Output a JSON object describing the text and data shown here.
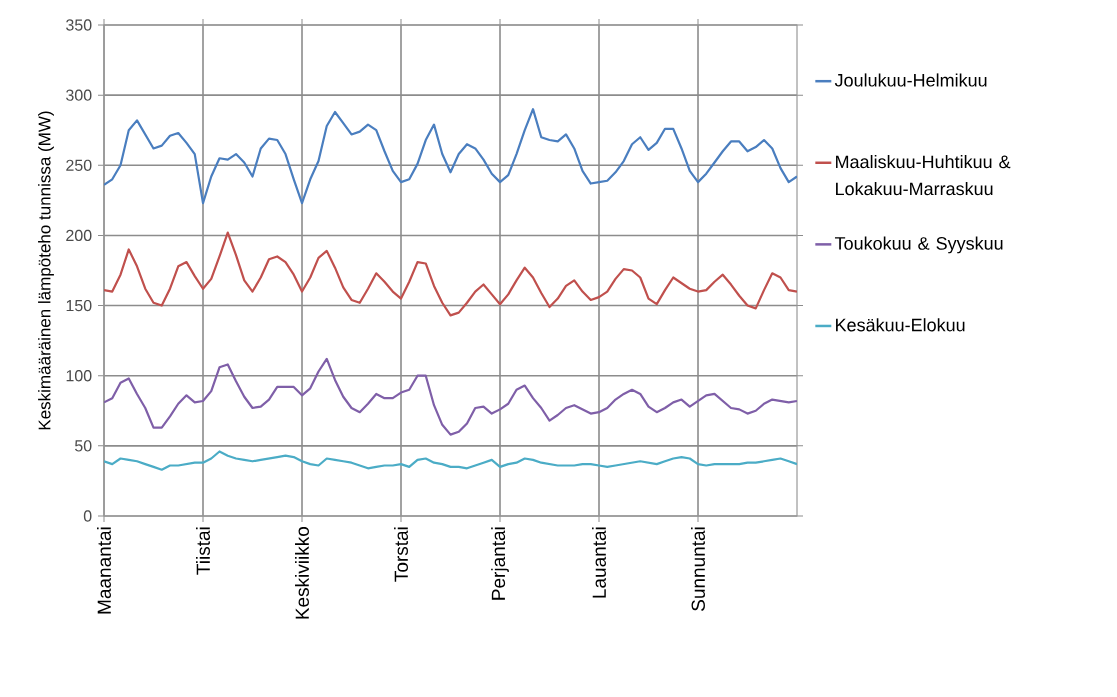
{
  "chart_data": {
    "type": "line",
    "ylabel": "Keskimääräinen lämpöteho tunnissa (MW)",
    "categories": [
      "Maanantai",
      null,
      null,
      null,
      null,
      null,
      null,
      null,
      null,
      null,
      null,
      null,
      "Tiistai",
      null,
      null,
      null,
      null,
      null,
      null,
      null,
      null,
      null,
      null,
      null,
      "Keskiviikko",
      null,
      null,
      null,
      null,
      null,
      null,
      null,
      null,
      null,
      null,
      null,
      "Torstai",
      null,
      null,
      null,
      null,
      null,
      null,
      null,
      null,
      null,
      null,
      null,
      "Perjantai",
      null,
      null,
      null,
      null,
      null,
      null,
      null,
      null,
      null,
      null,
      null,
      "Lauantai",
      null,
      null,
      null,
      null,
      null,
      null,
      null,
      null,
      null,
      null,
      null,
      "Sunnuntai",
      null,
      null,
      null,
      null,
      null,
      null,
      null,
      null,
      null,
      null,
      null,
      null
    ],
    "ylim": [
      0,
      350
    ],
    "yticks": [
      0,
      50,
      100,
      150,
      200,
      250,
      300,
      350
    ],
    "grid": true,
    "legend": "right",
    "series": [
      {
        "name": "Joulukuu-Helmikuu",
        "color": "#4a7ebf",
        "values": [
          236,
          240,
          250,
          275,
          282,
          272,
          262,
          264,
          271,
          273,
          266,
          258,
          223,
          242,
          255,
          254,
          258,
          252,
          242,
          262,
          269,
          268,
          258,
          240,
          223,
          240,
          253,
          278,
          288,
          280,
          272,
          274,
          279,
          275,
          260,
          246,
          238,
          240,
          251,
          268,
          279,
          258,
          245,
          258,
          265,
          262,
          254,
          244,
          238,
          243,
          258,
          275,
          290,
          270,
          268,
          267,
          272,
          262,
          246,
          237,
          238,
          239,
          245,
          253,
          265,
          270,
          261,
          266,
          276,
          276,
          262,
          246,
          238,
          244,
          252,
          260,
          267,
          267,
          260,
          263,
          268,
          262,
          248,
          238,
          242
        ]
      },
      {
        "name": "Maaliskuu-Huhtikuu & Lokakuu-Marraskuu",
        "color": "#c0504d",
        "values": [
          161,
          160,
          172,
          190,
          178,
          162,
          152,
          150,
          162,
          178,
          181,
          171,
          162,
          169,
          185,
          202,
          186,
          168,
          160,
          170,
          183,
          185,
          181,
          172,
          160,
          170,
          184,
          189,
          177,
          163,
          154,
          152,
          162,
          173,
          167,
          160,
          155,
          167,
          181,
          180,
          164,
          152,
          143,
          145,
          152,
          160,
          165,
          158,
          151,
          158,
          168,
          177,
          170,
          159,
          149,
          155,
          164,
          168,
          160,
          154,
          156,
          160,
          169,
          176,
          175,
          170,
          155,
          151,
          161,
          170,
          166,
          162,
          160,
          161,
          167,
          172,
          165,
          157,
          150,
          148,
          161,
          173,
          170,
          161,
          160
        ]
      },
      {
        "name": "Toukokuu & Syyskuu",
        "color": "#7f5fa8",
        "values": [
          81,
          84,
          95,
          98,
          87,
          77,
          63,
          63,
          71,
          80,
          86,
          81,
          82,
          89,
          106,
          108,
          96,
          85,
          77,
          78,
          83,
          92,
          92,
          92,
          86,
          91,
          103,
          112,
          97,
          85,
          77,
          74,
          80,
          87,
          84,
          84,
          88,
          90,
          100,
          100,
          79,
          65,
          58,
          60,
          66,
          77,
          78,
          73,
          76,
          80,
          90,
          93,
          84,
          77,
          68,
          72,
          77,
          79,
          76,
          73,
          74,
          77,
          83,
          87,
          90,
          87,
          78,
          74,
          77,
          81,
          83,
          78,
          82,
          86,
          87,
          82,
          77,
          76,
          73,
          75,
          80,
          83,
          82,
          81,
          82
        ]
      },
      {
        "name": "Kesäkuu-Elokuu",
        "color": "#4bacc6",
        "values": [
          39,
          37,
          41,
          40,
          39,
          37,
          35,
          33,
          36,
          36,
          37,
          38,
          38,
          41,
          46,
          43,
          41,
          40,
          39,
          40,
          41,
          42,
          43,
          42,
          39,
          37,
          36,
          41,
          40,
          39,
          38,
          36,
          34,
          35,
          36,
          36,
          37,
          35,
          40,
          41,
          38,
          37,
          35,
          35,
          34,
          36,
          38,
          40,
          35,
          37,
          38,
          41,
          40,
          38,
          37,
          36,
          36,
          36,
          37,
          37,
          36,
          35,
          36,
          37,
          38,
          39,
          38,
          37,
          39,
          41,
          42,
          41,
          37,
          36,
          37,
          37,
          37,
          37,
          38,
          38,
          39,
          40,
          41,
          39,
          37
        ]
      }
    ]
  }
}
